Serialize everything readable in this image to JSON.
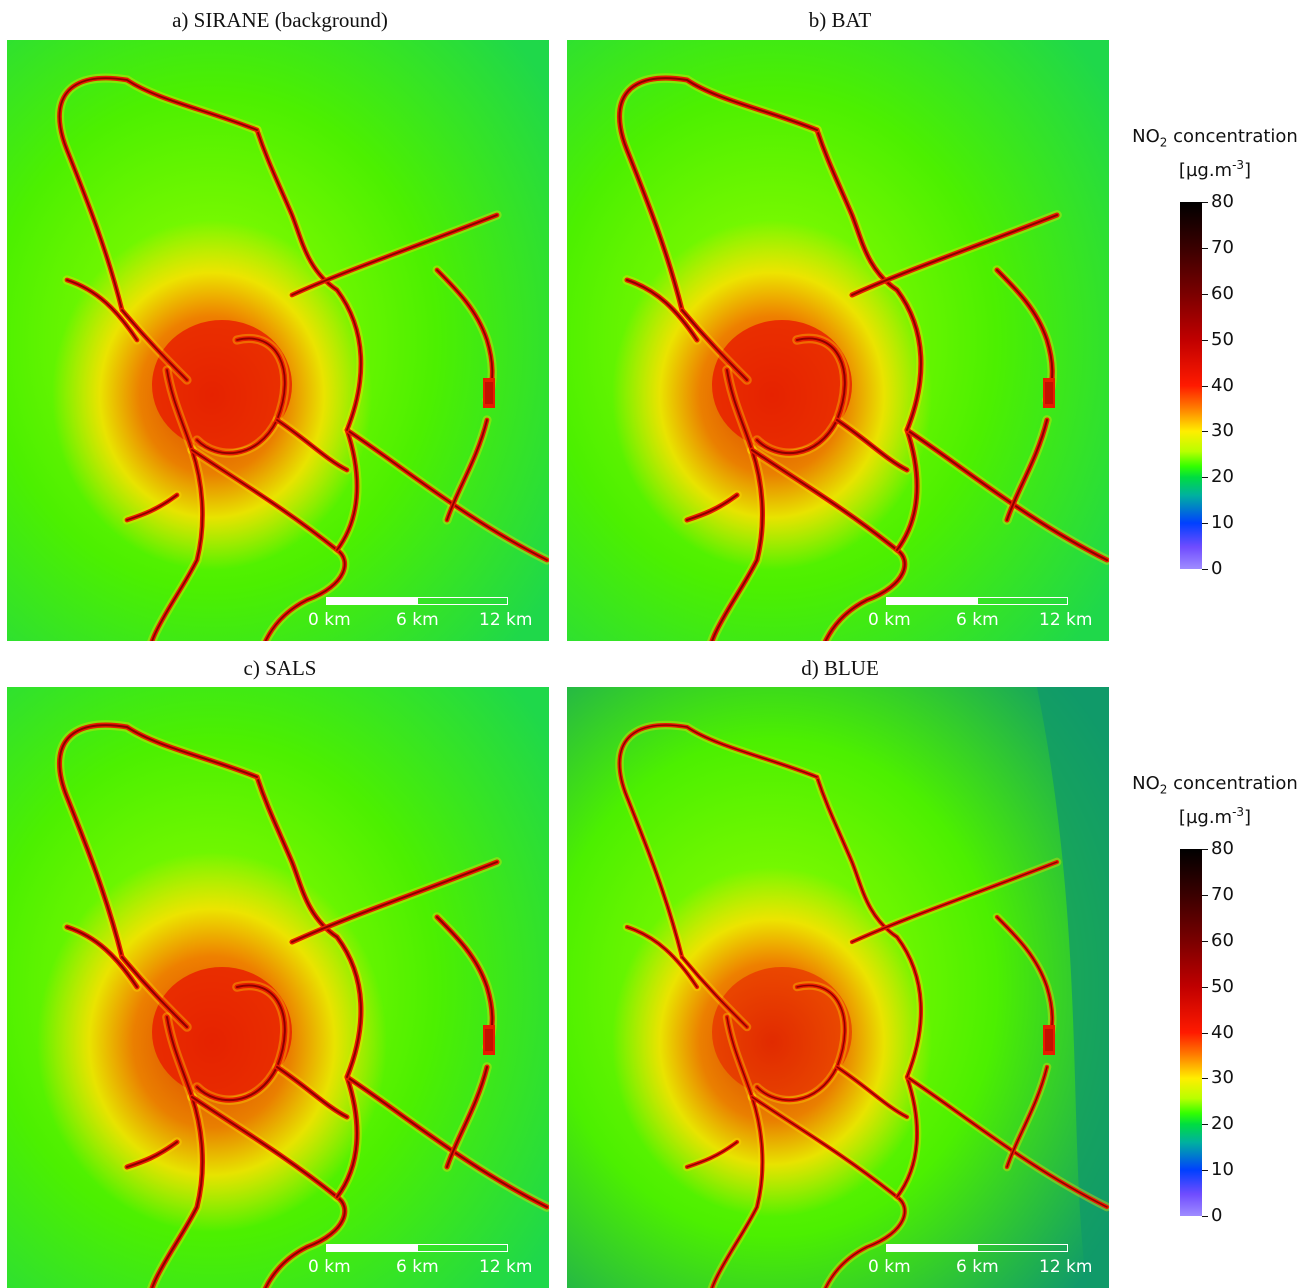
{
  "panels": [
    {
      "title": "a) SIRANE (background)",
      "variant": "a"
    },
    {
      "title": "b) BAT",
      "variant": "b"
    },
    {
      "title": "c) SALS",
      "variant": "c"
    },
    {
      "title": "d) BLUE",
      "variant": "d"
    }
  ],
  "scalebar": {
    "labels": [
      "0 km",
      "6 km",
      "12 km"
    ]
  },
  "colorbar": {
    "title_prefix": "NO",
    "title_sub": "2",
    "title_suffix": " concentration",
    "unit_prefix": "[µg.m",
    "unit_sup": "-3",
    "unit_suffix": "]",
    "ticks": [
      "80",
      "70",
      "60",
      "50",
      "40",
      "30",
      "20",
      "10",
      "0"
    ],
    "min": 0,
    "max": 80
  },
  "colors": {
    "background_green": "#4cf000",
    "outer_green": "#1fd84a",
    "teal": "#109a6a",
    "urban_red": "#e81c00",
    "road_dark": "#8a0000",
    "halo_yellow": "#ffe000"
  }
}
